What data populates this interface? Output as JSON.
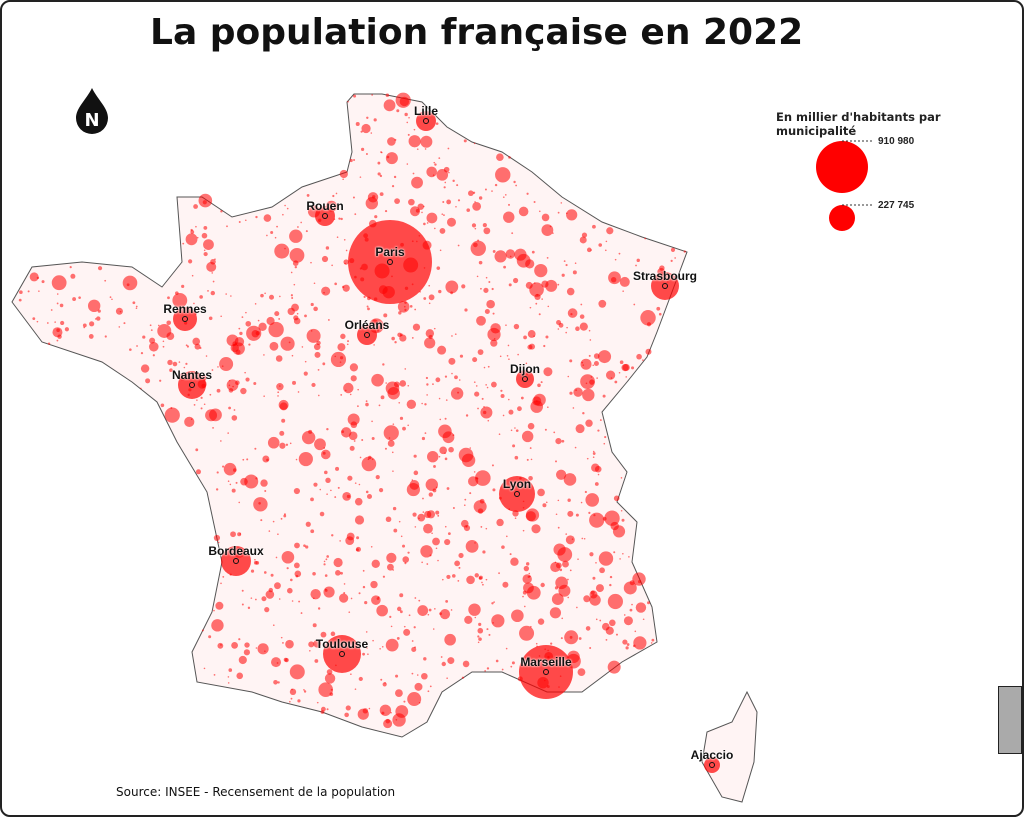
{
  "title": "La population française en 2022",
  "north_arrow": {
    "icon": "north-arrow-icon",
    "label": "N"
  },
  "legend": {
    "title": "En millier d'habitants par municipalité",
    "values": [
      "910 980",
      "227 745"
    ],
    "color": "#ff0000"
  },
  "cities": [
    "Lille",
    "Rouen",
    "Paris",
    "Strasbourg",
    "Rennes",
    "Orléans",
    "Nantes",
    "Dijon",
    "Lyon",
    "Bordeaux",
    "Toulouse",
    "Marseille",
    "Ajaccio"
  ],
  "source": "Source: INSEE - Recensement de la population",
  "license_icon": "cc-by-nc-sa-icon",
  "colors": {
    "bubble": "#ff0000",
    "land": "#fff4f4",
    "border": "#555555"
  }
}
